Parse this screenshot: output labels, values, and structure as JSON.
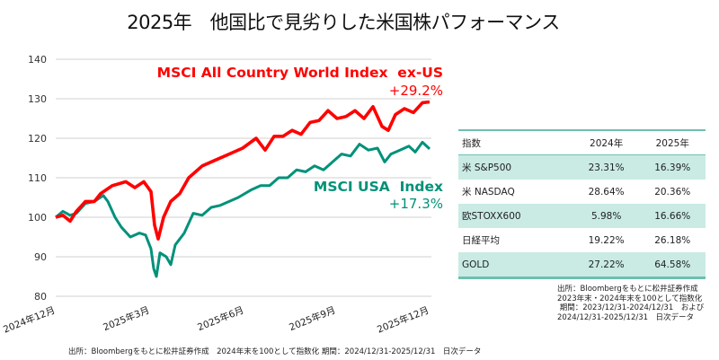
{
  "title": "2025年　他国比で見劣りした米国株パフォーマンス",
  "chart_data": {
    "type": "line",
    "title": "2025年　他国比で見劣りした米国株パフォーマンス",
    "xlabel": "",
    "ylabel": "",
    "ylim": [
      80,
      140
    ],
    "yticks": [
      140,
      130,
      120,
      110,
      100,
      90,
      80
    ],
    "xtick_labels": [
      "2024年12月",
      "2025年3月",
      "2025年6月",
      "2025年9月",
      "2025年12月"
    ],
    "grid": true,
    "series": [
      {
        "name": "MSCI All Country World Index  ex-US",
        "color": "#ff0000",
        "final_change": "+29.2%",
        "points": [
          [
            62,
            100
          ],
          [
            70,
            100.5
          ],
          [
            78,
            99
          ],
          [
            85,
            101.5
          ],
          [
            95,
            104
          ],
          [
            105,
            104
          ],
          [
            112,
            106
          ],
          [
            125,
            108
          ],
          [
            140,
            109
          ],
          [
            150,
            107.5
          ],
          [
            160,
            109
          ],
          [
            168,
            106.5
          ],
          [
            172,
            98
          ],
          [
            176,
            94.5
          ],
          [
            182,
            100
          ],
          [
            190,
            104
          ],
          [
            200,
            106
          ],
          [
            210,
            110
          ],
          [
            225,
            113
          ],
          [
            240,
            114.5
          ],
          [
            255,
            116
          ],
          [
            270,
            117.5
          ],
          [
            285,
            120
          ],
          [
            295,
            117
          ],
          [
            305,
            120.5
          ],
          [
            315,
            120.5
          ],
          [
            325,
            122
          ],
          [
            335,
            121
          ],
          [
            345,
            124
          ],
          [
            355,
            124.5
          ],
          [
            365,
            127
          ],
          [
            375,
            125
          ],
          [
            385,
            125.5
          ],
          [
            395,
            127
          ],
          [
            405,
            125
          ],
          [
            415,
            128
          ],
          [
            425,
            123
          ],
          [
            432,
            122
          ],
          [
            440,
            126
          ],
          [
            450,
            127.5
          ],
          [
            460,
            126.5
          ],
          [
            470,
            129
          ],
          [
            478,
            129.2
          ]
        ]
      },
      {
        "name": "MSCI USA  Index",
        "color": "#00917a",
        "final_change": "+17.3%",
        "points": [
          [
            62,
            100
          ],
          [
            70,
            101.5
          ],
          [
            78,
            100.5
          ],
          [
            85,
            101
          ],
          [
            95,
            103.5
          ],
          [
            105,
            104
          ],
          [
            115,
            105.5
          ],
          [
            120,
            104
          ],
          [
            128,
            100
          ],
          [
            135,
            97.5
          ],
          [
            145,
            95
          ],
          [
            155,
            96
          ],
          [
            162,
            95.5
          ],
          [
            168,
            92
          ],
          [
            171,
            87
          ],
          [
            174,
            85
          ],
          [
            178,
            91
          ],
          [
            185,
            90
          ],
          [
            190,
            88
          ],
          [
            195,
            93
          ],
          [
            205,
            96
          ],
          [
            215,
            101
          ],
          [
            225,
            100.5
          ],
          [
            235,
            102.5
          ],
          [
            245,
            103
          ],
          [
            255,
            104
          ],
          [
            265,
            105
          ],
          [
            280,
            107
          ],
          [
            290,
            108
          ],
          [
            300,
            108
          ],
          [
            310,
            110
          ],
          [
            320,
            110
          ],
          [
            330,
            112
          ],
          [
            340,
            111.5
          ],
          [
            350,
            113
          ],
          [
            360,
            112
          ],
          [
            370,
            114
          ],
          [
            380,
            116
          ],
          [
            390,
            115.5
          ],
          [
            400,
            118.5
          ],
          [
            410,
            117
          ],
          [
            420,
            117.5
          ],
          [
            428,
            114
          ],
          [
            435,
            116
          ],
          [
            445,
            117
          ],
          [
            455,
            118
          ],
          [
            462,
            116.5
          ],
          [
            470,
            119
          ],
          [
            478,
            117.3
          ]
        ]
      }
    ]
  },
  "labels": {
    "red_name": "MSCI All Country World Index  ex-US",
    "red_pct": "+29.2%",
    "teal_name": "MSCI USA  Index",
    "teal_pct": "+17.3%"
  },
  "axis": {
    "y": [
      "140",
      "130",
      "120",
      "110",
      "100",
      "90",
      "80"
    ],
    "x": [
      "2024年12月",
      "2025年3月",
      "2025年6月",
      "2025年9月",
      "2025年12月"
    ]
  },
  "source_chart": "出所：Bloombergをもとに松井証券作成　2024年末を100として指数化 期間：2024/12/31-2025/12/31　日次データ",
  "table": {
    "headers": [
      "指数",
      "2024年",
      "2025年"
    ],
    "rows": [
      [
        "米 S&P500",
        "23.31%",
        "16.39%"
      ],
      [
        "米 NASDAQ",
        "28.64%",
        "20.36%"
      ],
      [
        "欧STOXX600",
        "5.98%",
        "16.66%"
      ],
      [
        "日経平均",
        "19.22%",
        "26.18%"
      ],
      [
        "GOLD",
        "27.22%",
        "64.58%"
      ]
    ]
  },
  "source_table": [
    "出所：Bloombergをもとに松井証券作成",
    "2023年末・2024年末を100として指数化",
    " 期間：2023/12/31-2024/12/31　および",
    "2024/12/31-2025/12/31　日次データ"
  ]
}
